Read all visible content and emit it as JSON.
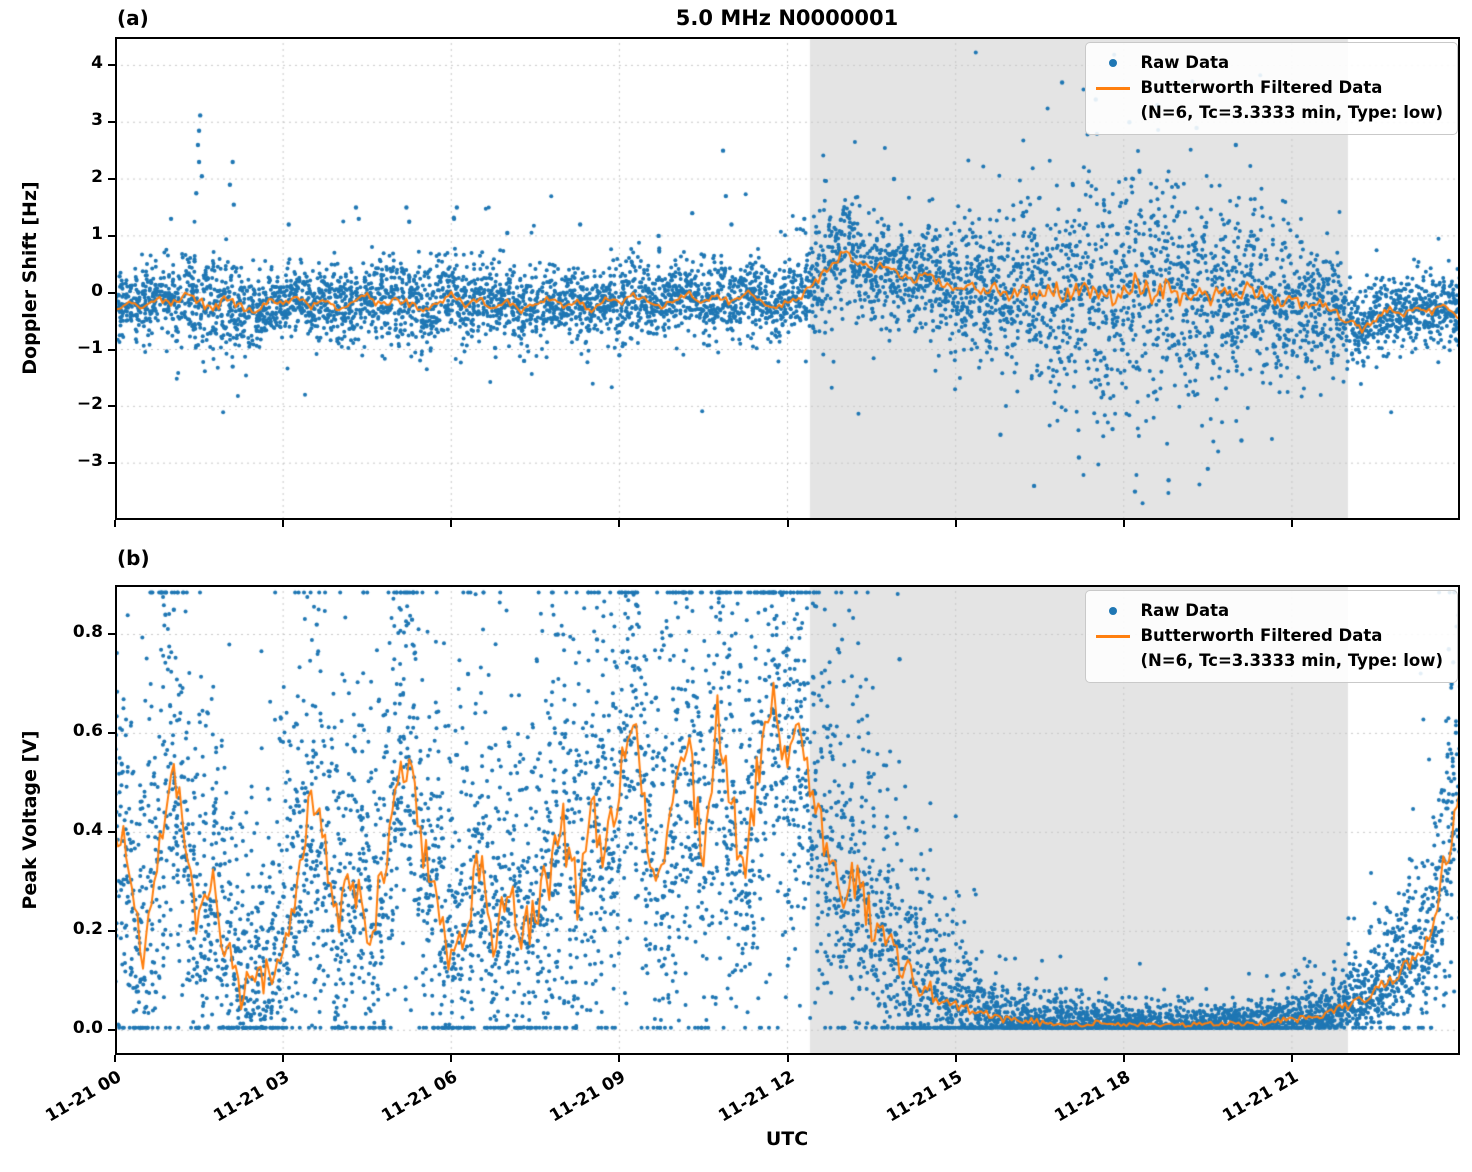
{
  "figure": {
    "title": "5.0 MHz N0000001",
    "xlabel": "UTC",
    "panels": [
      {
        "label": "(a)",
        "ylabel": "Doppler Shift [Hz]"
      },
      {
        "label": "(b)",
        "ylabel": "Peak Voltage [V]"
      }
    ],
    "colors": {
      "raw": "#1f77b4",
      "filtered": "#ff7f0e",
      "shade": "#e4e4e4",
      "grid": "#c8c8c8",
      "axis": "#000000"
    }
  },
  "legend": {
    "raw_label": "Raw Data",
    "filtered_label": "Butterworth Filtered Data",
    "filtered_sublabel": "(N=6, Tc=3.3333 min, Type: low)"
  },
  "chart_data": [
    {
      "type": "scatter",
      "panel": "a",
      "title": "5.0 MHz N0000001",
      "xlabel": "UTC",
      "ylabel": "Doppler Shift [Hz]",
      "xlim_hours": [
        0,
        24
      ],
      "ylim": [
        -4.0,
        4.5
      ],
      "yticks": [
        4,
        3,
        2,
        1,
        0,
        -1,
        -2,
        -3
      ],
      "ytick_labels": [
        "4",
        "3",
        "2",
        "1",
        "0",
        "−1",
        "−2",
        "−3"
      ],
      "xtick_hours": [
        0,
        3,
        6,
        9,
        12,
        15,
        18,
        21
      ],
      "xtick_labels": [
        "11-21 00",
        "11-21 03",
        "11-21 06",
        "11-21 09",
        "11-21 12",
        "11-21 15",
        "11-21 18",
        "11-21 21"
      ],
      "shaded_hours": [
        12.4,
        22.0
      ],
      "shade_color": "#e4e4e4",
      "grid": true,
      "legend_position": "upper right",
      "clip": null,
      "series": [
        {
          "name": "Raw Data",
          "type": "scatter",
          "color": "#1f77b4",
          "density_per_bin": 50,
          "bin_hours": 0.2,
          "sd_hours_step": 0.5,
          "sd": [
            0.3,
            0.28,
            0.3,
            0.55,
            0.45,
            0.3,
            0.3,
            0.32,
            0.35,
            0.3,
            0.38,
            0.4,
            0.4,
            0.35,
            0.3,
            0.32,
            0.3,
            0.3,
            0.3,
            0.3,
            0.3,
            0.35,
            0.4,
            0.32,
            0.3,
            0.45,
            0.55,
            0.5,
            0.45,
            0.45,
            0.5,
            0.6,
            0.7,
            0.8,
            0.9,
            0.95,
            1.0,
            1.0,
            0.95,
            0.9,
            0.85,
            0.75,
            0.6,
            0.5,
            0.4,
            0.35,
            0.32,
            0.3,
            0.3
          ],
          "tail_prob": 0.07,
          "tail_mult": 2.3,
          "pos_boost": 1.0,
          "outliers": [
            [
              1.52,
              3.12
            ],
            [
              1.5,
              2.85
            ],
            [
              1.48,
              2.6
            ],
            [
              1.5,
              2.3
            ],
            [
              1.55,
              2.05
            ],
            [
              1.45,
              1.75
            ],
            [
              2.1,
              2.3
            ],
            [
              2.05,
              1.9
            ],
            [
              2.12,
              1.55
            ],
            [
              1.0,
              1.3
            ],
            [
              3.1,
              1.2
            ],
            [
              4.3,
              1.5
            ],
            [
              4.35,
              1.3
            ],
            [
              5.2,
              1.5
            ],
            [
              5.25,
              1.25
            ],
            [
              6.1,
              1.5
            ],
            [
              6.05,
              1.3
            ],
            [
              7.0,
              1.05
            ],
            [
              8.3,
              1.2
            ],
            [
              9.7,
              1.0
            ],
            [
              10.3,
              1.4
            ],
            [
              10.85,
              2.5
            ],
            [
              10.9,
              1.7
            ],
            [
              11.0,
              1.2
            ],
            [
              12.3,
              1.3
            ],
            [
              13.9,
              2.0
            ],
            [
              16.9,
              3.7
            ],
            [
              17.5,
              3.4
            ],
            [
              18.6,
              3.3
            ],
            [
              18.1,
              3.0
            ],
            [
              19.3,
              2.9
            ],
            [
              20.0,
              2.6
            ],
            [
              15.8,
              -2.5
            ],
            [
              16.4,
              -3.4
            ],
            [
              17.2,
              -2.9
            ],
            [
              18.2,
              -3.5
            ],
            [
              18.8,
              -3.3
            ],
            [
              19.5,
              -3.1
            ],
            [
              20.1,
              -2.6
            ],
            [
              17.8,
              -2.4
            ],
            [
              2.1,
              -1.3
            ],
            [
              7.3,
              -1.2
            ],
            [
              9.0,
              -1.1
            ]
          ]
        },
        {
          "name": "Butterworth Filtered Data (N=6, Tc=3.3333 min, Type: low)",
          "type": "line",
          "color": "#ff7f0e",
          "hours_step": 0.25,
          "jitter": 0.18,
          "values": [
            -0.35,
            -0.15,
            -0.25,
            -0.1,
            -0.2,
            -0.05,
            -0.15,
            -0.3,
            -0.1,
            -0.25,
            -0.35,
            -0.15,
            -0.2,
            -0.05,
            -0.25,
            -0.1,
            -0.3,
            -0.15,
            -0.05,
            -0.25,
            -0.1,
            -0.2,
            -0.3,
            -0.15,
            -0.05,
            -0.2,
            -0.1,
            -0.25,
            -0.15,
            -0.35,
            -0.2,
            -0.1,
            -0.25,
            -0.15,
            -0.3,
            -0.1,
            -0.2,
            -0.05,
            -0.15,
            -0.25,
            -0.1,
            0.0,
            -0.15,
            -0.05,
            -0.2,
            0.05,
            -0.1,
            -0.3,
            -0.15,
            -0.05,
            0.2,
            0.45,
            0.7,
            0.55,
            0.4,
            0.5,
            0.3,
            0.2,
            0.35,
            0.15,
            0.05,
            0.15,
            0.0,
            0.1,
            -0.05,
            0.1,
            -0.1,
            0.05,
            -0.05,
            0.15,
            0.0,
            -0.1,
            0.05,
            0.2,
            -0.05,
            0.1,
            -0.1,
            0.05,
            -0.15,
            0.0,
            -0.1,
            0.1,
            -0.05,
            -0.2,
            -0.1,
            -0.25,
            -0.15,
            -0.35,
            -0.5,
            -0.65,
            -0.45,
            -0.3,
            -0.4,
            -0.25,
            -0.35,
            -0.2,
            -0.45
          ]
        }
      ]
    },
    {
      "type": "scatter",
      "panel": "b",
      "title": "",
      "xlabel": "UTC",
      "ylabel": "Peak Voltage [V]",
      "xlim_hours": [
        0,
        24
      ],
      "ylim": [
        -0.05,
        0.9
      ],
      "yticks": [
        0.0,
        0.2,
        0.4,
        0.6,
        0.8
      ],
      "ytick_labels": [
        "0.0",
        "0.2",
        "0.4",
        "0.6",
        "0.8"
      ],
      "xtick_hours": [
        0,
        3,
        6,
        9,
        12,
        15,
        18,
        21
      ],
      "xtick_labels": [
        "11-21 00",
        "11-21 03",
        "11-21 06",
        "11-21 09",
        "11-21 12",
        "11-21 15",
        "11-21 18",
        "11-21 21"
      ],
      "shaded_hours": [
        12.4,
        22.0
      ],
      "shade_color": "#e4e4e4",
      "grid": true,
      "legend_position": "upper right",
      "clip": [
        0.005,
        0.885
      ],
      "series": [
        {
          "name": "Raw Data",
          "type": "scatter",
          "color": "#1f77b4",
          "density_per_bin": 58,
          "bin_hours": 0.2,
          "sd_hours_step": 0.5,
          "sd": [
            0.16,
            0.16,
            0.17,
            0.15,
            0.12,
            0.1,
            0.14,
            0.16,
            0.15,
            0.14,
            0.16,
            0.16,
            0.14,
            0.15,
            0.15,
            0.16,
            0.17,
            0.17,
            0.18,
            0.17,
            0.18,
            0.18,
            0.18,
            0.18,
            0.18,
            0.16,
            0.14,
            0.12,
            0.09,
            0.07,
            0.05,
            0.035,
            0.025,
            0.02,
            0.015,
            0.015,
            0.012,
            0.012,
            0.012,
            0.013,
            0.013,
            0.015,
            0.018,
            0.02,
            0.025,
            0.035,
            0.05,
            0.08,
            0.12
          ],
          "tail_prob": 0.16,
          "tail_mult": 2.1,
          "pos_boost": 1.45,
          "outliers": [
            [
              0.9,
              0.84
            ],
            [
              1.05,
              0.85
            ],
            [
              3.6,
              0.82
            ],
            [
              5.3,
              0.83
            ],
            [
              7.9,
              0.8
            ],
            [
              9.3,
              0.86
            ],
            [
              10.8,
              0.83
            ],
            [
              11.6,
              0.85
            ],
            [
              11.9,
              0.88
            ],
            [
              12.1,
              0.87
            ],
            [
              12.9,
              0.77
            ],
            [
              14.0,
              0.75
            ],
            [
              23.8,
              0.77
            ],
            [
              23.85,
              0.7
            ],
            [
              8.6,
              0.79
            ],
            [
              6.3,
              0.72
            ]
          ]
        },
        {
          "name": "Butterworth Filtered Data (N=6, Tc=3.3333 min, Type: low)",
          "type": "line",
          "color": "#ff7f0e",
          "hours_step": 0.25,
          "jitter": 0.35,
          "values": [
            0.45,
            0.3,
            0.15,
            0.35,
            0.55,
            0.4,
            0.2,
            0.3,
            0.15,
            0.08,
            0.12,
            0.1,
            0.18,
            0.3,
            0.48,
            0.35,
            0.22,
            0.32,
            0.2,
            0.28,
            0.45,
            0.58,
            0.38,
            0.25,
            0.15,
            0.22,
            0.35,
            0.2,
            0.28,
            0.18,
            0.25,
            0.32,
            0.4,
            0.28,
            0.45,
            0.35,
            0.5,
            0.62,
            0.4,
            0.3,
            0.45,
            0.55,
            0.35,
            0.62,
            0.45,
            0.3,
            0.55,
            0.65,
            0.5,
            0.6,
            0.42,
            0.35,
            0.28,
            0.3,
            0.22,
            0.18,
            0.14,
            0.1,
            0.08,
            0.06,
            0.05,
            0.04,
            0.03,
            0.025,
            0.02,
            0.02,
            0.015,
            0.015,
            0.012,
            0.012,
            0.015,
            0.012,
            0.01,
            0.012,
            0.01,
            0.012,
            0.01,
            0.012,
            0.015,
            0.012,
            0.015,
            0.012,
            0.015,
            0.02,
            0.02,
            0.025,
            0.03,
            0.04,
            0.05,
            0.06,
            0.08,
            0.1,
            0.13,
            0.16,
            0.2,
            0.35,
            0.45
          ]
        }
      ]
    }
  ]
}
